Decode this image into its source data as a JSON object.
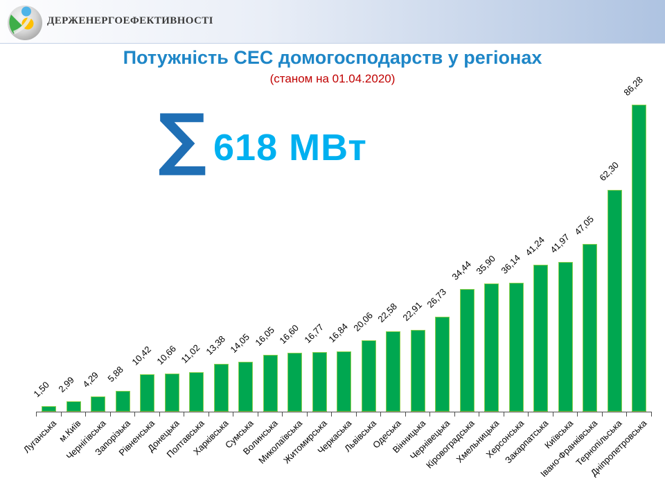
{
  "slide": {
    "logo": {
      "text": "ДЕРЖЕНЕРГОЕФЕКТИВНОСТІ"
    },
    "title": "Потужність СЕС домогосподарств у регіонах",
    "subtitle": "(станом на 01.04.2020)",
    "summary": {
      "sigma": "∑",
      "total": "618 МВт"
    },
    "colors": {
      "title": "#1e86c7",
      "subtitle": "#c00000",
      "sigma": "#1f6fb5",
      "total": "#00b0f0",
      "bar_fill": "#00a750",
      "bar_border": "#8fd14f",
      "axis": "#4d4d4d",
      "label": "#000000"
    }
  },
  "chart_data": {
    "type": "bar",
    "title": "Потужність СЕС домогосподарств у регіонах",
    "subtitle": "(станом на 01.04.2020)",
    "total_label": "∑ 618 МВт",
    "unit": "МВт",
    "ylim": [
      0,
      90
    ],
    "grid": false,
    "categories": [
      "Луганська",
      "м.Київ",
      "Чернігівська",
      "Запорізька",
      "Рівненська",
      "Донецька",
      "Полтавська",
      "Харківська",
      "Сумська",
      "Волинська",
      "Миколаївська",
      "Житомирська",
      "Черкаська",
      "Львівська",
      "Одеська",
      "Вінницька",
      "Чернівецька",
      "Кіровоградська",
      "Хмельницька",
      "Херсонська",
      "Закарпатська",
      "Київська",
      "Івано-Франківська",
      "Тернопільська",
      "Дніпропетровська"
    ],
    "values": [
      1.5,
      2.99,
      4.29,
      5.88,
      10.42,
      10.66,
      11.02,
      13.38,
      14.05,
      16.05,
      16.6,
      16.77,
      16.84,
      20.06,
      22.58,
      22.91,
      26.73,
      34.44,
      35.9,
      36.14,
      41.24,
      41.97,
      47.05,
      62.3,
      86.28
    ],
    "value_labels": [
      "1,50",
      "2,99",
      "4,29",
      "5,88",
      "10,42",
      "10,66",
      "11,02",
      "13,38",
      "14,05",
      "16,05",
      "16,60",
      "16,77",
      "16,84",
      "20,06",
      "22,58",
      "22,91",
      "26,73",
      "34,44",
      "35,90",
      "36,14",
      "41,24",
      "41,97",
      "47,05",
      "62,30",
      "86,28"
    ]
  }
}
